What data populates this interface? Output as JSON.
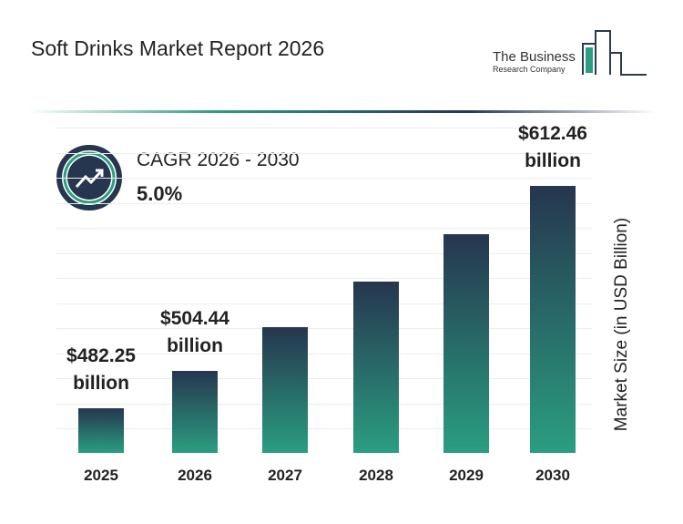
{
  "chart_data": {
    "type": "bar",
    "title": "Soft Drinks Market Report 2026",
    "logo": [
      "The Business",
      "Research Company"
    ],
    "cagr_label": "CAGR 2026 - 2030",
    "cagr_value": "5.0%",
    "y_label": "Market Size (in USD Billion)",
    "categories": [
      "2025",
      "2026",
      "2027",
      "2028",
      "2029",
      "2030"
    ],
    "values": [
      482.25,
      504.44,
      529.7,
      556.2,
      584.0,
      612.46
    ],
    "value_labels": [
      "$482.25 billion",
      "$504.44 billion",
      null,
      null,
      null,
      "$612.46 billion"
    ]
  }
}
